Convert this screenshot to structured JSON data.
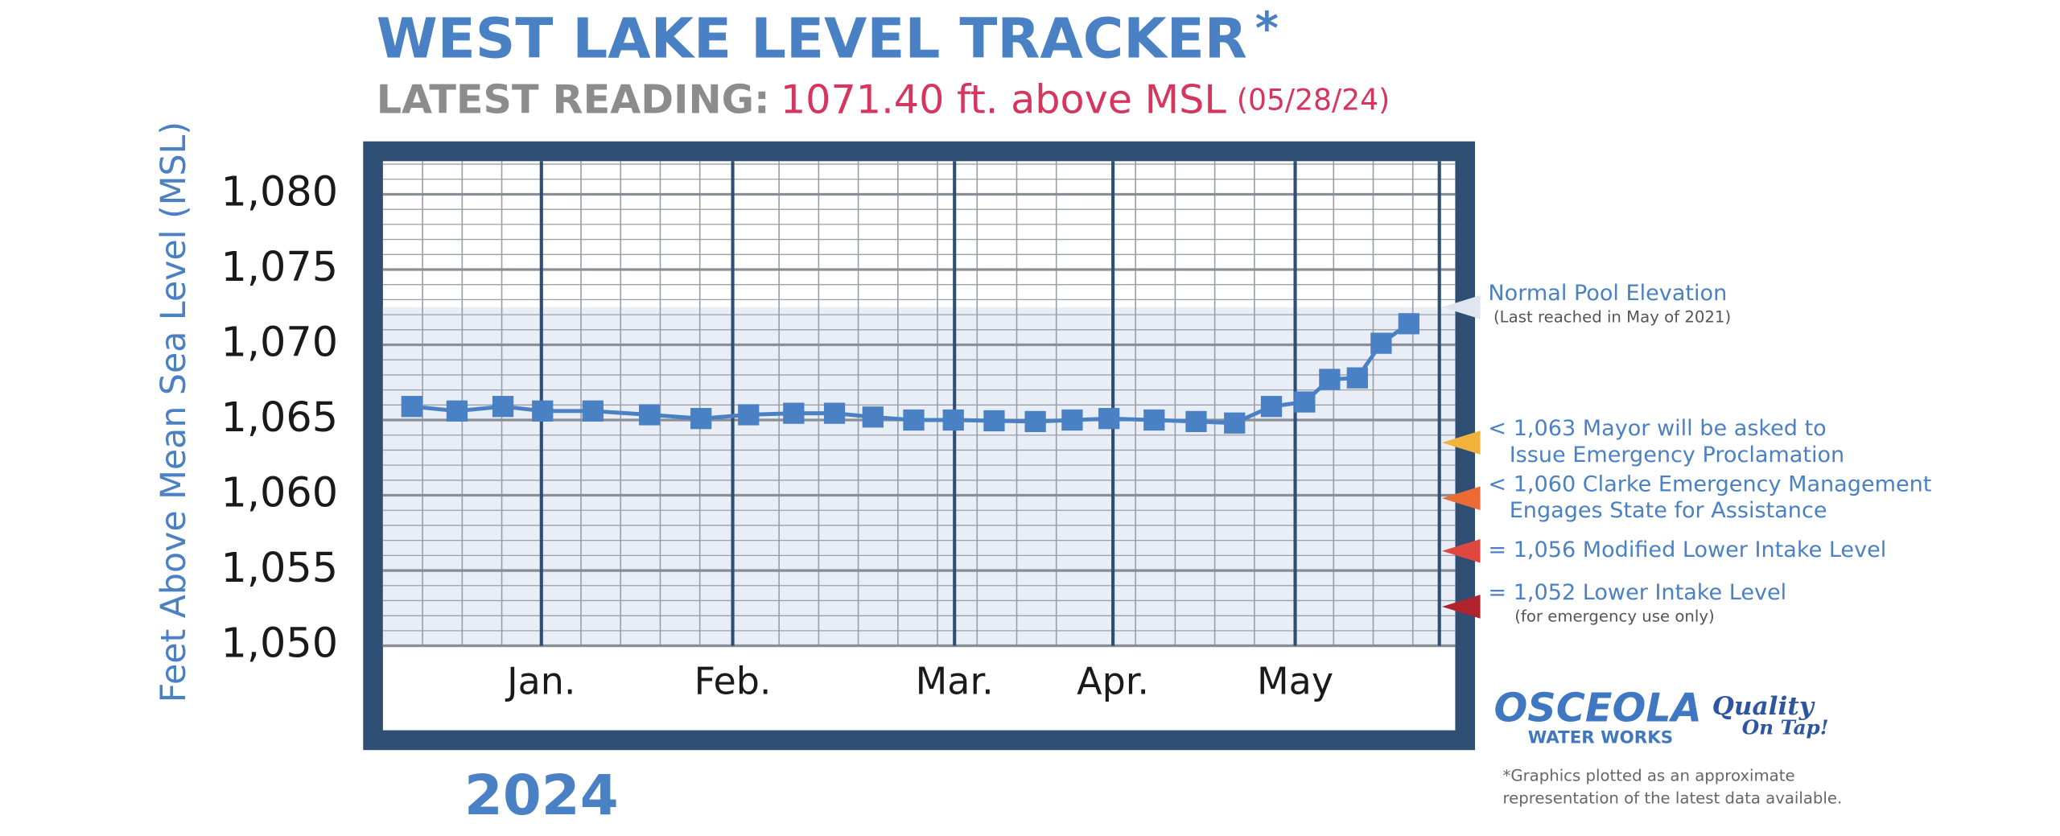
{
  "title": "WEST LAKE LEVEL TRACKER",
  "title_mark": "*",
  "subtitle_label": "LATEST READING:",
  "subtitle_value": "1071.40 ft. above MSL",
  "subtitle_date": "(05/28/24)",
  "chart_data": {
    "type": "line",
    "y_label": "Feet Above Mean Sea Level (MSL)",
    "year_label": "2024",
    "x": [
      0.73,
      1.87,
      3.03,
      4.03,
      5.3,
      6.73,
      8.03,
      9.23,
      10.37,
      11.4,
      12.37,
      13.4,
      14.4,
      15.43,
      16.47,
      17.4,
      18.33,
      19.47,
      20.53,
      21.5,
      22.43,
      23.27,
      23.9,
      24.6,
      25.2,
      25.9
    ],
    "series": [
      {
        "color": "#4a80c4",
        "values": [
          1065.9,
          1065.6,
          1065.9,
          1065.6,
          1065.6,
          1065.35,
          1065.1,
          1065.35,
          1065.45,
          1065.45,
          1065.2,
          1065.0,
          1065.0,
          1064.95,
          1064.9,
          1065.0,
          1065.1,
          1065.0,
          1064.9,
          1064.8,
          1065.9,
          1066.2,
          1067.7,
          1067.8,
          1070.1,
          1071.4
        ]
      }
    ],
    "xlim": [
      0,
      27.07
    ],
    "xticks": [
      {
        "value": 4.0,
        "label": "Jan."
      },
      {
        "value": 8.83,
        "label": "Feb."
      },
      {
        "value": 14.43,
        "label": "Mar."
      },
      {
        "value": 18.43,
        "label": "Apr."
      },
      {
        "value": 23.03,
        "label": "May"
      },
      {
        "value": 26.67,
        "label": null
      }
    ],
    "xminorticks": [
      1,
      2,
      3,
      5,
      6,
      7,
      8,
      10,
      11,
      12,
      13,
      14,
      15,
      16,
      17,
      19,
      20,
      21,
      22,
      24,
      25,
      26
    ],
    "ylim": [
      1050,
      1082.2
    ],
    "yticks": [
      {
        "value": 1050,
        "label": "1,050"
      },
      {
        "value": 1055,
        "label": "1,055"
      },
      {
        "value": 1060,
        "label": "1,060"
      },
      {
        "value": 1065,
        "label": "1,065"
      },
      {
        "value": 1070,
        "label": "1,070"
      },
      {
        "value": 1075,
        "label": "1,075"
      },
      {
        "value": 1080,
        "label": "1,080"
      }
    ],
    "yminorticks": [
      1051,
      1052,
      1053,
      1054,
      1056,
      1057,
      1058,
      1059,
      1061,
      1062,
      1063,
      1064,
      1066,
      1067,
      1068,
      1069,
      1071,
      1072,
      1073,
      1074,
      1076,
      1077,
      1078,
      1079,
      1081,
      1082
    ],
    "grid": true,
    "shade_top": 1072.5,
    "thresholds": [
      {
        "value": 1072.5,
        "color": "#dfe6f0",
        "lines": [
          "Normal Pool Elevation"
        ],
        "note": "(Last reached in May of 2021)"
      },
      {
        "value": 1063.5,
        "color": "#f2b33d",
        "lines": [
          "< 1,063 Mayor will be asked to",
          "Issue Emergency Proclamation"
        ]
      },
      {
        "value": 1059.8,
        "color": "#ec6b35",
        "lines": [
          "< 1,060 Clarke Emergency Management",
          "Engages State for Assistance"
        ]
      },
      {
        "value": 1056.3,
        "color": "#e0483f",
        "lines": [
          "= 1,056 Modified Lower Intake Level"
        ]
      },
      {
        "value": 1052.6,
        "color": "#b0252d",
        "lines": [
          "= 1,052 Lower Intake Level"
        ],
        "note": "(for emergency use only)"
      }
    ]
  },
  "logo": {
    "name": "OSCEOLA",
    "sub": "WATER WORKS",
    "quality": "Quality",
    "tap": "On Tap!"
  },
  "footnote": [
    "*Graphics plotted as an approximate",
    "representation of the latest data available."
  ]
}
